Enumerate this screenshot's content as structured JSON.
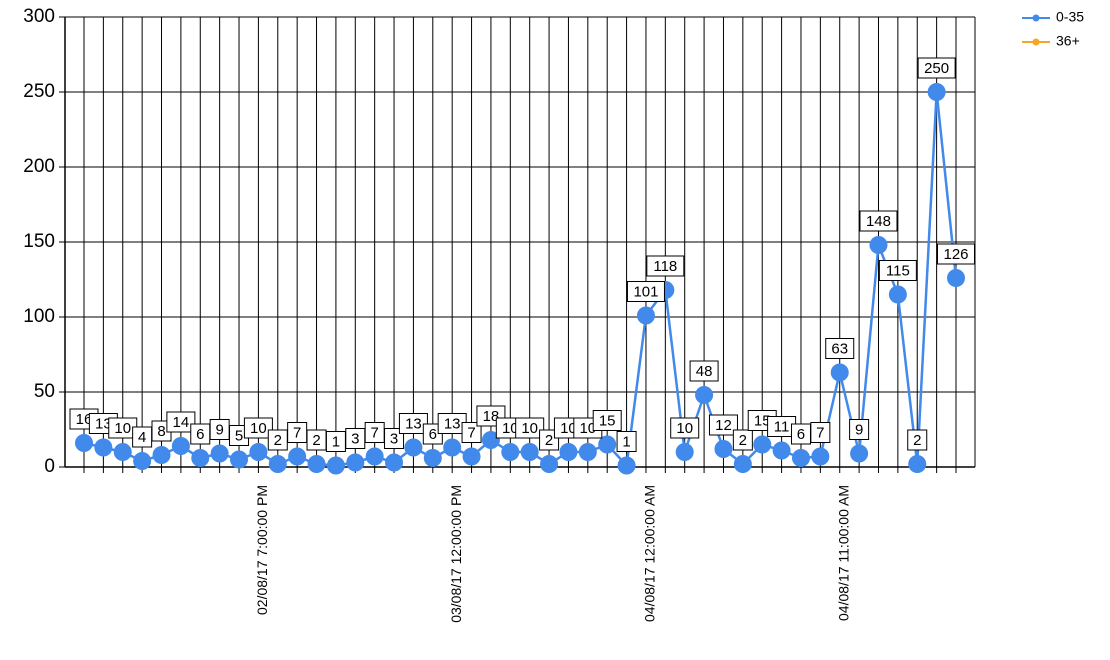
{
  "chart_data": {
    "type": "line",
    "categories": [
      null,
      null,
      null,
      null,
      null,
      null,
      null,
      null,
      null,
      "02/08/17 7:00:00 PM",
      null,
      null,
      null,
      null,
      null,
      null,
      null,
      null,
      null,
      "03/08/17 12:00:00 PM",
      null,
      null,
      null,
      null,
      null,
      null,
      null,
      null,
      null,
      "04/08/17 12:00:00 AM",
      null,
      null,
      null,
      null,
      null,
      null,
      null,
      null,
      null,
      "04/08/17 11:00:00 AM",
      null,
      null,
      null,
      null,
      null,
      null
    ],
    "series": [
      {
        "name": "0-35",
        "color": "#4189ea",
        "values": [
          16,
          13,
          10,
          4,
          8,
          14,
          6,
          9,
          5,
          10,
          2,
          7,
          2,
          1,
          3,
          7,
          3,
          13,
          6,
          13,
          7,
          18,
          10,
          10,
          2,
          10,
          10,
          15,
          1,
          101,
          118,
          10,
          48,
          12,
          2,
          15,
          11,
          6,
          7,
          63,
          9,
          148,
          115,
          2,
          250,
          126
        ]
      },
      {
        "name": "36+",
        "color": "#f5a623",
        "values": [
          null,
          null,
          null,
          null,
          null,
          null,
          null,
          null,
          null,
          null,
          null,
          null,
          null,
          null,
          null,
          null,
          null,
          null,
          null,
          null,
          null,
          null,
          null,
          null,
          null,
          null,
          null,
          null,
          null,
          null,
          null,
          null,
          null,
          null,
          null,
          null,
          null,
          null,
          null,
          null,
          null,
          null,
          null,
          null,
          null,
          null
        ]
      }
    ],
    "ylim": [
      0,
      300
    ],
    "yticks": [
      0,
      50,
      100,
      150,
      200,
      250,
      300
    ],
    "grid": true,
    "legend": "top-right"
  }
}
